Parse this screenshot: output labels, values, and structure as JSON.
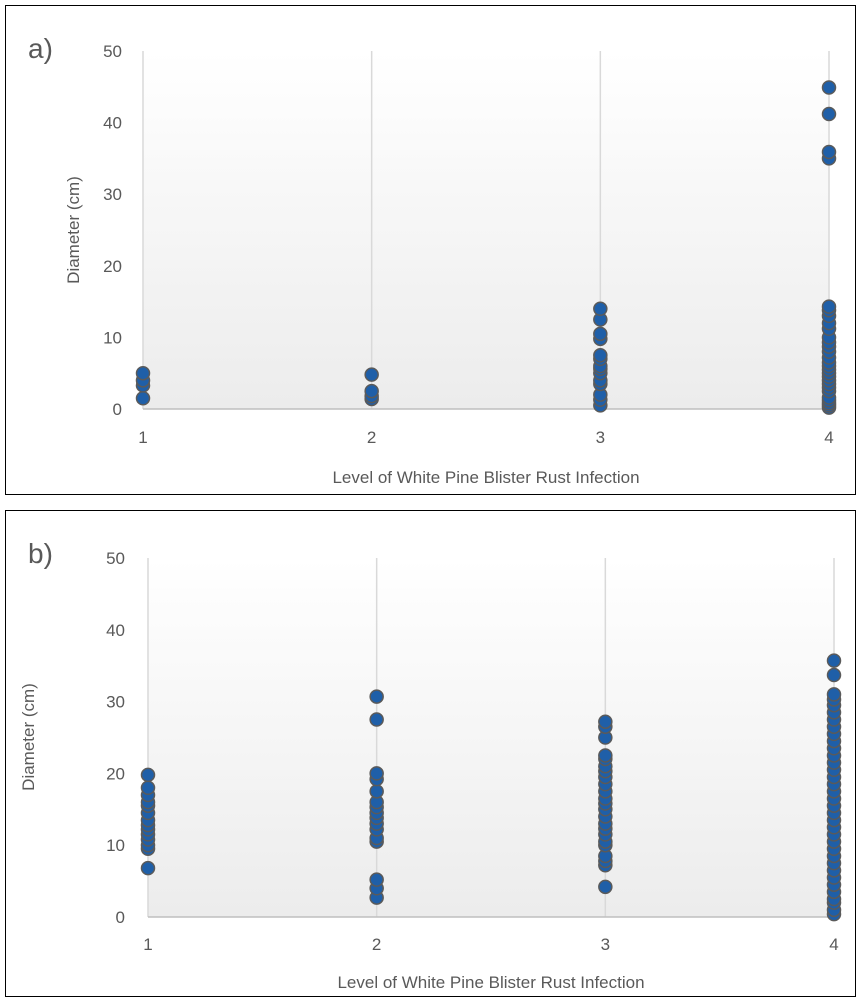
{
  "colors": {
    "point_fill": "#1f5fa8",
    "point_stroke": "#5a5a5a",
    "grid": "#d9d9d9",
    "axis": "#bfbfbf",
    "text": "#595959"
  },
  "chart_data": [
    {
      "type": "scatter",
      "panel_label": "a)",
      "title": "",
      "xlabel": "Level of White Pine Blister Rust Infection",
      "ylabel": "Diameter (cm)",
      "xlim": [
        1,
        4
      ],
      "ylim": [
        0,
        50
      ],
      "xticks": [
        1,
        2,
        3,
        4
      ],
      "yticks": [
        0,
        10,
        20,
        30,
        40,
        50
      ],
      "grid": "vertical",
      "series": [
        {
          "points": [
            [
              1,
              1.5
            ],
            [
              1,
              3.3
            ],
            [
              1,
              4.0
            ],
            [
              1,
              5.0
            ],
            [
              2,
              1.4
            ],
            [
              2,
              1.8
            ],
            [
              2,
              2.5
            ],
            [
              2,
              4.8
            ],
            [
              3,
              0.5
            ],
            [
              3,
              1.3
            ],
            [
              3,
              2.0
            ],
            [
              3,
              3.5
            ],
            [
              3,
              4.0
            ],
            [
              3,
              5.0
            ],
            [
              3,
              5.6
            ],
            [
              3,
              6.0
            ],
            [
              3,
              7.0
            ],
            [
              3,
              7.5
            ],
            [
              3,
              9.8
            ],
            [
              3,
              10.5
            ],
            [
              3,
              12.5
            ],
            [
              3,
              14.0
            ],
            [
              4,
              0.2
            ],
            [
              4,
              0.5
            ],
            [
              4,
              0.8
            ],
            [
              4,
              1.2
            ],
            [
              4,
              1.6
            ],
            [
              4,
              2.5
            ],
            [
              4,
              3.0
            ],
            [
              4,
              3.5
            ],
            [
              4,
              4.0
            ],
            [
              4,
              4.5
            ],
            [
              4,
              5.0
            ],
            [
              4,
              5.5
            ],
            [
              4,
              6.0
            ],
            [
              4,
              6.5
            ],
            [
              4,
              7.2
            ],
            [
              4,
              8.0
            ],
            [
              4,
              8.7
            ],
            [
              4,
              9.3
            ],
            [
              4,
              10.0
            ],
            [
              4,
              11.2
            ],
            [
              4,
              12.0
            ],
            [
              4,
              13.0
            ],
            [
              4,
              13.8
            ],
            [
              4,
              14.3
            ],
            [
              4,
              35.0
            ],
            [
              4,
              35.9
            ],
            [
              4,
              41.2
            ],
            [
              4,
              44.9
            ]
          ]
        }
      ]
    },
    {
      "type": "scatter",
      "panel_label": "b)",
      "title": "",
      "xlabel": "Level of White Pine Blister Rust Infection",
      "ylabel": "Diameter (cm)",
      "xlim": [
        1,
        4
      ],
      "ylim": [
        0,
        50
      ],
      "xticks": [
        1,
        2,
        3,
        4
      ],
      "yticks": [
        0,
        10,
        20,
        30,
        40,
        50
      ],
      "grid": "vertical",
      "series": [
        {
          "points": [
            [
              1,
              6.8
            ],
            [
              1,
              9.5
            ],
            [
              1,
              10.0
            ],
            [
              1,
              10.8
            ],
            [
              1,
              11.5
            ],
            [
              1,
              12.2
            ],
            [
              1,
              12.8
            ],
            [
              1,
              13.5
            ],
            [
              1,
              14.5
            ],
            [
              1,
              15.5
            ],
            [
              1,
              16.0
            ],
            [
              1,
              17.0
            ],
            [
              1,
              18.0
            ],
            [
              1,
              19.8
            ],
            [
              2,
              2.7
            ],
            [
              2,
              4.0
            ],
            [
              2,
              5.2
            ],
            [
              2,
              10.5
            ],
            [
              2,
              11.0
            ],
            [
              2,
              12.2
            ],
            [
              2,
              13.0
            ],
            [
              2,
              13.8
            ],
            [
              2,
              14.5
            ],
            [
              2,
              15.3
            ],
            [
              2,
              16.0
            ],
            [
              2,
              17.5
            ],
            [
              2,
              19.2
            ],
            [
              2,
              20.0
            ],
            [
              2,
              27.5
            ],
            [
              2,
              30.7
            ],
            [
              3,
              4.2
            ],
            [
              3,
              7.2
            ],
            [
              3,
              7.8
            ],
            [
              3,
              8.5
            ],
            [
              3,
              10.0
            ],
            [
              3,
              10.5
            ],
            [
              3,
              11.5
            ],
            [
              3,
              12.3
            ],
            [
              3,
              13.0
            ],
            [
              3,
              14.0
            ],
            [
              3,
              15.0
            ],
            [
              3,
              15.8
            ],
            [
              3,
              16.5
            ],
            [
              3,
              17.5
            ],
            [
              3,
              18.5
            ],
            [
              3,
              19.5
            ],
            [
              3,
              20.3
            ],
            [
              3,
              21.0
            ],
            [
              3,
              22.0
            ],
            [
              3,
              22.5
            ],
            [
              3,
              25.0
            ],
            [
              3,
              26.5
            ],
            [
              3,
              27.2
            ],
            [
              4,
              0.4
            ],
            [
              4,
              1.0
            ],
            [
              4,
              2.0
            ],
            [
              4,
              2.5
            ],
            [
              4,
              3.5
            ],
            [
              4,
              4.5
            ],
            [
              4,
              5.5
            ],
            [
              4,
              6.5
            ],
            [
              4,
              7.5
            ],
            [
              4,
              8.5
            ],
            [
              4,
              9.5
            ],
            [
              4,
              10.5
            ],
            [
              4,
              11.5
            ],
            [
              4,
              12.5
            ],
            [
              4,
              13.5
            ],
            [
              4,
              14.5
            ],
            [
              4,
              15.5
            ],
            [
              4,
              16.5
            ],
            [
              4,
              17.5
            ],
            [
              4,
              18.5
            ],
            [
              4,
              19.5
            ],
            [
              4,
              20.5
            ],
            [
              4,
              21.5
            ],
            [
              4,
              22.5
            ],
            [
              4,
              23.5
            ],
            [
              4,
              24.5
            ],
            [
              4,
              25.5
            ],
            [
              4,
              26.5
            ],
            [
              4,
              27.5
            ],
            [
              4,
              28.5
            ],
            [
              4,
              29.5
            ],
            [
              4,
              30.3
            ],
            [
              4,
              31.0
            ],
            [
              4,
              33.7
            ],
            [
              4,
              35.7
            ]
          ]
        }
      ]
    }
  ]
}
